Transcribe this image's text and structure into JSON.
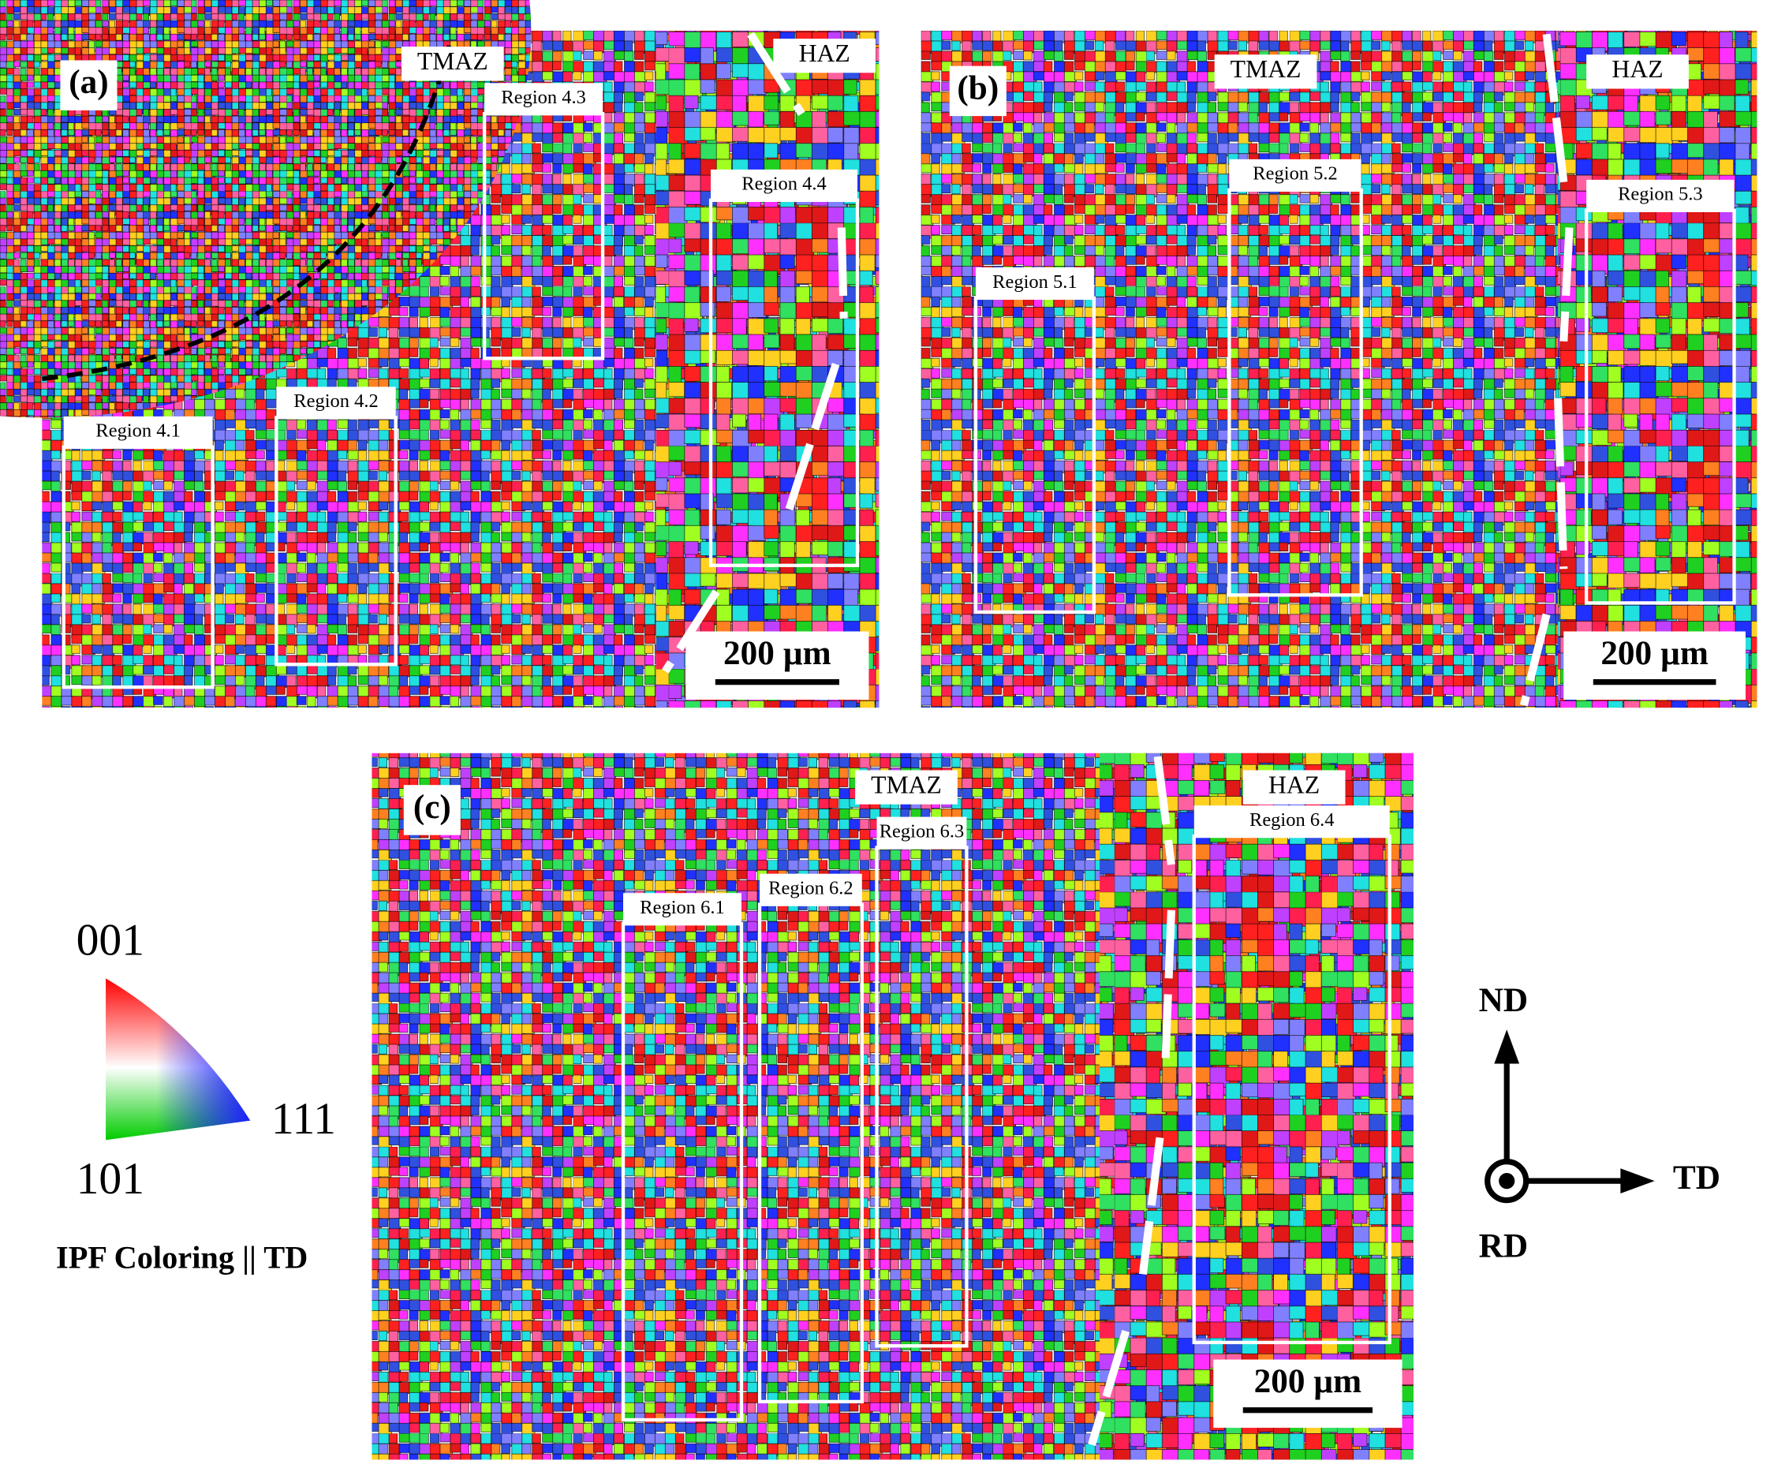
{
  "panels": [
    {
      "label": "(a)",
      "zones": [
        "TMAZ",
        "HAZ"
      ],
      "regions": [
        "Region 4.1",
        "Region 4.2",
        "Region 4.3",
        "Region 4.4"
      ],
      "scale_bar": "200 µm"
    },
    {
      "label": "(b)",
      "zones": [
        "TMAZ",
        "HAZ"
      ],
      "regions": [
        "Region 5.1",
        "Region 5.2",
        "Region 5.3"
      ],
      "scale_bar": "200 µm"
    },
    {
      "label": "(c)",
      "zones": [
        "TMAZ",
        "HAZ"
      ],
      "regions": [
        "Region 6.1",
        "Region 6.2",
        "Region 6.3",
        "Region 6.4"
      ],
      "scale_bar": "200 µm"
    }
  ],
  "legend": {
    "corners": [
      "001",
      "101",
      "111"
    ],
    "caption": "IPF Coloring || TD"
  },
  "axes": {
    "up": "ND",
    "right": "TD",
    "out": "RD"
  }
}
